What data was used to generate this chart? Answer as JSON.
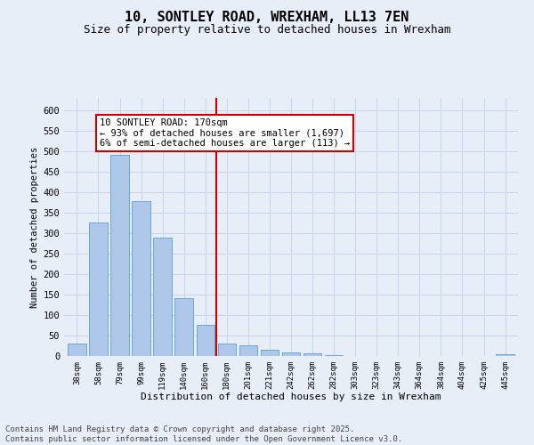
{
  "title": "10, SONTLEY ROAD, WREXHAM, LL13 7EN",
  "subtitle": "Size of property relative to detached houses in Wrexham",
  "xlabel": "Distribution of detached houses by size in Wrexham",
  "ylabel": "Number of detached properties",
  "categories": [
    "38sqm",
    "58sqm",
    "79sqm",
    "99sqm",
    "119sqm",
    "140sqm",
    "160sqm",
    "180sqm",
    "201sqm",
    "221sqm",
    "242sqm",
    "262sqm",
    "282sqm",
    "303sqm",
    "323sqm",
    "343sqm",
    "364sqm",
    "384sqm",
    "404sqm",
    "425sqm",
    "445sqm"
  ],
  "values": [
    30,
    325,
    490,
    378,
    290,
    142,
    76,
    30,
    27,
    15,
    8,
    6,
    3,
    1,
    1,
    1,
    0,
    1,
    0,
    0,
    5
  ],
  "bar_color": "#aec6e8",
  "bar_edge_color": "#5a9fd4",
  "vline_x_index": 7,
  "vline_color": "#cc0000",
  "annotation_text": "10 SONTLEY ROAD: 170sqm\n← 93% of detached houses are smaller (1,697)\n6% of semi-detached houses are larger (113) →",
  "annotation_box_color": "#cc0000",
  "annotation_bg": "#ffffff",
  "ylim": [
    0,
    630
  ],
  "yticks": [
    0,
    50,
    100,
    150,
    200,
    250,
    300,
    350,
    400,
    450,
    500,
    550,
    600
  ],
  "grid_color": "#c8d4e8",
  "bg_color": "#e8eef8",
  "fig_bg_color": "#e8eef8",
  "footnote": "Contains HM Land Registry data © Crown copyright and database right 2025.\nContains public sector information licensed under the Open Government Licence v3.0.",
  "title_fontsize": 11,
  "subtitle_fontsize": 9,
  "footnote_fontsize": 6.5,
  "ann_fontsize": 7.5
}
